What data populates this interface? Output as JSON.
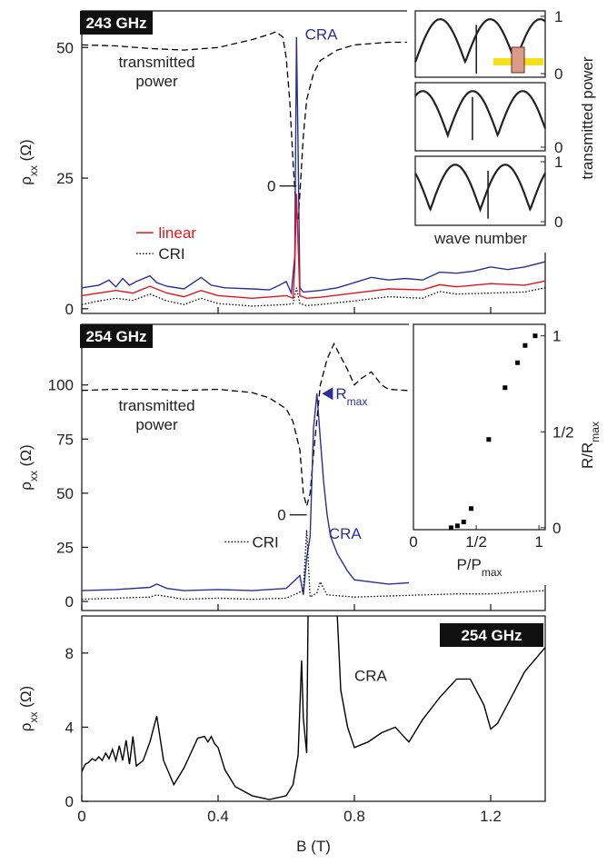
{
  "chart_data": [
    {
      "type": "line",
      "label": "243 GHz",
      "ylabel": {
        "text": "ρ",
        "sub": "xx",
        "unit": "(Ω)"
      },
      "xlim": [
        0,
        1.36
      ],
      "ylim": [
        -0.9,
        57
      ],
      "yticks": [
        0,
        25,
        50
      ],
      "offset_label": "0",
      "offset_level": 23.5,
      "series": [
        {
          "name": "transmitted power",
          "color": "#000000",
          "style": "dashed",
          "x": [
            0,
            0.1,
            0.2,
            0.3,
            0.4,
            0.5,
            0.55,
            0.57,
            0.59,
            0.6,
            0.61,
            0.62,
            0.63,
            0.635,
            0.64,
            0.65,
            0.66,
            0.68,
            0.7,
            0.75,
            0.8,
            0.9,
            1.0
          ],
          "values": [
            50.5,
            50.3,
            49.8,
            49.5,
            50,
            51.5,
            52.5,
            53,
            52,
            48,
            40,
            28,
            18,
            17,
            22,
            33,
            40,
            45,
            47.5,
            49.5,
            50.5,
            51,
            51
          ]
        },
        {
          "name": "CRA",
          "color": "#2b2f96",
          "style": "solid",
          "x": [
            0,
            0.05,
            0.08,
            0.1,
            0.12,
            0.14,
            0.16,
            0.2,
            0.22,
            0.25,
            0.3,
            0.35,
            0.38,
            0.42,
            0.5,
            0.55,
            0.58,
            0.6,
            0.615,
            0.625,
            0.63,
            0.635,
            0.64,
            0.65,
            0.7,
            0.75,
            0.8,
            0.85,
            0.9,
            0.95,
            1.0,
            1.05,
            1.1,
            1.15,
            1.2,
            1.25,
            1.3,
            1.36
          ],
          "values": [
            4,
            4.5,
            5.5,
            4.2,
            5.8,
            4.5,
            5.2,
            6.3,
            5,
            4.3,
            3.8,
            6,
            4.5,
            4,
            3.8,
            3.6,
            4.5,
            5.2,
            3,
            10,
            52,
            30,
            4,
            3.2,
            3.5,
            4,
            5,
            6,
            5.5,
            5.8,
            5.5,
            7,
            6.8,
            7.2,
            8,
            7.5,
            8,
            9
          ]
        },
        {
          "name": "linear",
          "color": "#e2151c",
          "style": "solid",
          "x": [
            0,
            0.05,
            0.1,
            0.15,
            0.2,
            0.25,
            0.3,
            0.35,
            0.4,
            0.5,
            0.6,
            0.62,
            0.625,
            0.63,
            0.635,
            0.64,
            0.66,
            0.7,
            0.8,
            0.9,
            1.0,
            1.05,
            1.1,
            1.2,
            1.3,
            1.36
          ],
          "values": [
            2.5,
            3,
            3.5,
            3,
            4.3,
            3,
            2.3,
            3.5,
            2.5,
            2,
            2.5,
            2,
            8,
            22,
            12,
            2.5,
            2,
            2.2,
            3,
            3.8,
            3.6,
            4.6,
            4.2,
            4.8,
            4.5,
            5.3
          ]
        },
        {
          "name": "CRI",
          "color": "#000000",
          "style": "dotted",
          "x": [
            0,
            0.05,
            0.1,
            0.15,
            0.2,
            0.25,
            0.3,
            0.35,
            0.4,
            0.5,
            0.6,
            0.62,
            0.63,
            0.64,
            0.66,
            0.7,
            0.8,
            0.9,
            1.0,
            1.05,
            1.1,
            1.2,
            1.3,
            1.36
          ],
          "values": [
            0.8,
            1.5,
            2,
            1.6,
            2.8,
            1.5,
            0.8,
            2,
            1,
            0.5,
            0.8,
            1,
            4,
            1,
            0.6,
            0.8,
            1.5,
            2.3,
            2,
            3.3,
            2.8,
            3,
            3.2,
            4
          ]
        }
      ]
    },
    {
      "type": "line",
      "label": "254 GHz",
      "ylabel": {
        "text": "ρ",
        "sub": "xx",
        "unit": "(Ω)"
      },
      "xlim": [
        0,
        1.36
      ],
      "ylim": [
        -4.2,
        128
      ],
      "yticks": [
        0,
        25,
        50,
        75,
        100
      ],
      "offset_label": "0",
      "offset_level": 40,
      "rmax_label": {
        "text": "R",
        "sub": "max"
      },
      "series": [
        {
          "name": "transmitted power",
          "color": "#000000",
          "style": "dashed",
          "x": [
            0,
            0.1,
            0.2,
            0.3,
            0.4,
            0.5,
            0.55,
            0.6,
            0.62,
            0.64,
            0.65,
            0.66,
            0.67,
            0.68,
            0.7,
            0.72,
            0.74,
            0.76,
            0.78,
            0.8,
            0.82,
            0.85,
            0.88,
            0.9,
            0.95,
            1.0
          ],
          "values": [
            97.5,
            98,
            98,
            97.5,
            98,
            96.5,
            94,
            89,
            83,
            70,
            50,
            44,
            50,
            68,
            100,
            112,
            119,
            113,
            107,
            100,
            103,
            106,
            100,
            98,
            97.5,
            97
          ]
        },
        {
          "name": "CRA",
          "color": "#2b2f96",
          "style": "solid",
          "x": [
            0,
            0.1,
            0.2,
            0.22,
            0.25,
            0.3,
            0.4,
            0.5,
            0.6,
            0.64,
            0.65,
            0.66,
            0.67,
            0.68,
            0.69,
            0.7,
            0.71,
            0.72,
            0.73,
            0.75,
            0.78,
            0.8,
            0.9,
            1.0,
            1.1,
            1.2,
            1.3,
            1.36
          ],
          "values": [
            5,
            5.5,
            6.5,
            8,
            6,
            5,
            5.5,
            5,
            6,
            12,
            3,
            20,
            30,
            80,
            96,
            75,
            55,
            40,
            30,
            22,
            14,
            10,
            8,
            9,
            8.5,
            10,
            11,
            12
          ]
        },
        {
          "name": "CRI",
          "color": "#000000",
          "style": "dotted",
          "x": [
            0,
            0.1,
            0.2,
            0.22,
            0.3,
            0.4,
            0.5,
            0.6,
            0.65,
            0.66,
            0.67,
            0.69,
            0.7,
            0.72,
            0.8,
            0.9,
            1.0,
            1.1,
            1.2,
            1.3,
            1.36
          ],
          "values": [
            1,
            1.5,
            2,
            3,
            1,
            1.5,
            1,
            1.5,
            5,
            33,
            2,
            4,
            9,
            3,
            2,
            2.5,
            3,
            3.5,
            3.5,
            4.5,
            5
          ]
        }
      ]
    },
    {
      "type": "line",
      "label": "254 GHz",
      "ylabel": {
        "text": "ρ",
        "sub": "xx",
        "unit": "(Ω)"
      },
      "xlabel": "B (T)",
      "xlim": [
        0,
        1.36
      ],
      "ylim": [
        0,
        10
      ],
      "yticks": [
        0,
        4,
        8
      ],
      "xticks": [
        0,
        0.4,
        0.8,
        1.2
      ],
      "annotation": "CRA",
      "series": [
        {
          "name": "CRA",
          "color": "#000000",
          "style": "solid",
          "x": [
            0,
            0.01,
            0.02,
            0.03,
            0.04,
            0.05,
            0.06,
            0.07,
            0.08,
            0.09,
            0.1,
            0.11,
            0.12,
            0.13,
            0.14,
            0.15,
            0.16,
            0.18,
            0.2,
            0.22,
            0.24,
            0.27,
            0.3,
            0.34,
            0.36,
            0.37,
            0.38,
            0.39,
            0.4,
            0.42,
            0.45,
            0.5,
            0.55,
            0.6,
            0.62,
            0.635,
            0.645,
            0.65,
            0.66,
            0.665,
            0.67,
            0.74,
            0.75,
            0.76,
            0.78,
            0.8,
            0.84,
            0.88,
            0.92,
            0.96,
            1.0,
            1.05,
            1.1,
            1.14,
            1.18,
            1.2,
            1.22,
            1.26,
            1.3,
            1.36
          ],
          "values": [
            1.6,
            2,
            2.1,
            2.3,
            2.2,
            2.4,
            2.2,
            2.6,
            2.3,
            2.8,
            2.2,
            3,
            2.2,
            3.3,
            2,
            3.5,
            1.9,
            2.2,
            3.2,
            4.6,
            2.2,
            0.9,
            1.8,
            3.4,
            3.5,
            3.2,
            3.5,
            3.1,
            2.9,
            1.7,
            0.8,
            0.3,
            0.1,
            0.3,
            0.9,
            2.5,
            7.6,
            4.5,
            2.6,
            12,
            14,
            14,
            10,
            6,
            4,
            2.9,
            3.2,
            3.7,
            4,
            3.2,
            4.4,
            5.6,
            6.6,
            6.6,
            5.2,
            3.9,
            4.2,
            5.6,
            7,
            8.3
          ]
        }
      ]
    },
    {
      "type": "inset-transmission",
      "ylabel": "transmitted power",
      "xlabel": "wave number",
      "panels": [
        {
          "dip": 0.47,
          "dip_min": 0.0,
          "yticks": [
            0,
            1
          ]
        },
        {
          "dip": 0.44,
          "dip_min": 0.12,
          "yticks": [
            0
          ]
        },
        {
          "dip": 0.56,
          "dip_min": 0.05,
          "yticks": [
            0,
            1
          ]
        }
      ]
    },
    {
      "type": "scatter",
      "xlabel": {
        "text": "P/P",
        "sub": "max"
      },
      "ylabel": {
        "text": "R/R",
        "sub": "max"
      },
      "xlim": [
        0,
        1.05
      ],
      "ylim": [
        -0.01,
        1.06
      ],
      "xticks": [
        0,
        {
          "value": 0.5,
          "label": "1/2"
        },
        1
      ],
      "yticks": [
        0,
        {
          "value": 0.5,
          "label": "1/2"
        },
        1
      ],
      "color": "#000000",
      "x": [
        0.3,
        0.35,
        0.4,
        0.46,
        0.6,
        0.73,
        0.83,
        0.89,
        0.97
      ],
      "values": [
        0.0,
        0.01,
        0.03,
        0.1,
        0.46,
        0.73,
        0.86,
        0.95,
        1.0
      ]
    }
  ]
}
